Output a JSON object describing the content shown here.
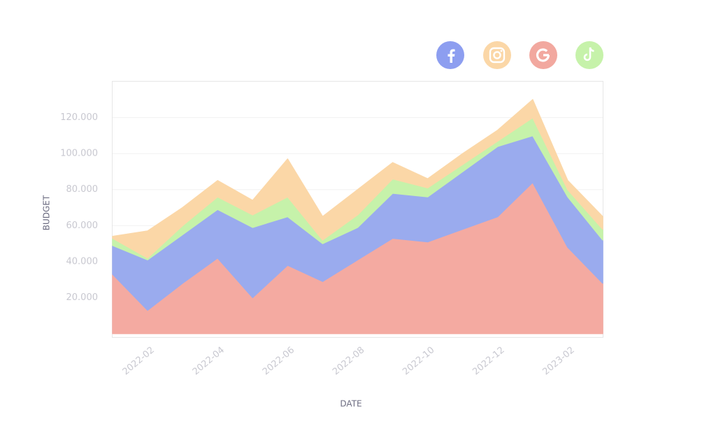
{
  "chart_data": {
    "type": "stacked-area",
    "x_label": "DATE",
    "y_label": "BUDGET",
    "categories": [
      null,
      "2022-02",
      null,
      "2022-04",
      null,
      "2022-06",
      null,
      "2022-08",
      null,
      "2022-10",
      null,
      "2022-12",
      null,
      "2023-02",
      null
    ],
    "series": [
      {
        "color": "#f4aaa1",
        "values": [
          33000,
          13000,
          28000,
          42000,
          20000,
          38000,
          29000,
          41000,
          53000,
          51000,
          58000,
          65000,
          84000,
          48000,
          28000
        ]
      },
      {
        "color": "#9aabee",
        "values": [
          16000,
          28000,
          27000,
          27000,
          39000,
          27000,
          21000,
          18000,
          25000,
          25000,
          32000,
          39000,
          26000,
          28000,
          24000
        ]
      },
      {
        "color": "#c6f2aa",
        "values": [
          4000,
          1000,
          5000,
          7000,
          7000,
          11000,
          2000,
          7000,
          8000,
          5000,
          4000,
          3000,
          10000,
          4000,
          6000
        ]
      },
      {
        "color": "#fbd7a7",
        "values": [
          1000,
          15000,
          10000,
          9000,
          8000,
          21000,
          13000,
          14000,
          9000,
          5000,
          6000,
          6000,
          10000,
          5000,
          7000
        ]
      }
    ],
    "ylim": [
      0,
      140000
    ],
    "yticks": [
      {
        "value": 20000,
        "label": "20.000"
      },
      {
        "value": 40000,
        "label": "40.000"
      },
      {
        "value": 60000,
        "label": "60.000"
      },
      {
        "value": 80000,
        "label": "80.000"
      },
      {
        "value": 100000,
        "label": "100.000"
      },
      {
        "value": 120000,
        "label": "120.000"
      }
    ],
    "grid": true
  }
}
